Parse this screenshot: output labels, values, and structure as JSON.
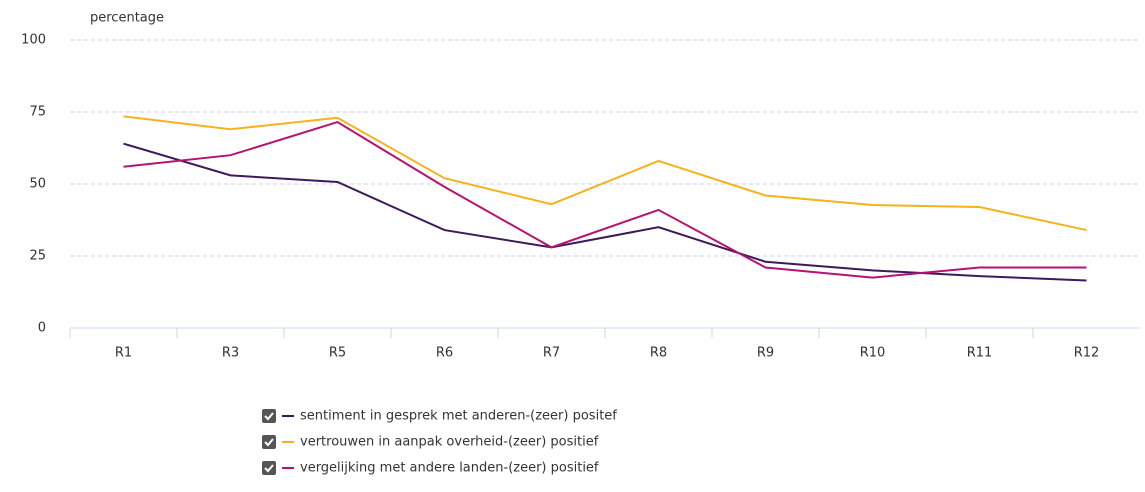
{
  "chart_data": {
    "type": "line",
    "y_label": "percentage",
    "categories": [
      "R1",
      "R3",
      "R5",
      "R6",
      "R7",
      "R8",
      "R9",
      "R10",
      "R11",
      "R12"
    ],
    "series": [
      {
        "name": "sentiment in gesprek met anderen-(zeer) positef",
        "color": "#3d1a5c",
        "values": [
          64,
          53,
          50.7,
          34,
          28,
          35,
          23,
          20,
          18,
          16.5
        ]
      },
      {
        "name": "vertrouwen in aanpak overheid-(zeer) positief",
        "color": "#f5b21a",
        "values": [
          73.5,
          69,
          73,
          52,
          43,
          58,
          46,
          42.7,
          42,
          34
        ]
      },
      {
        "name": "vergelijking met andere landen-(zeer) positief",
        "color": "#b5136f",
        "values": [
          56,
          60,
          71.5,
          49,
          28,
          41,
          21,
          17.5,
          21,
          21
        ]
      }
    ],
    "ylim": [
      0,
      100
    ],
    "yticks": [
      0,
      25,
      50,
      75,
      100
    ],
    "grid": true
  }
}
